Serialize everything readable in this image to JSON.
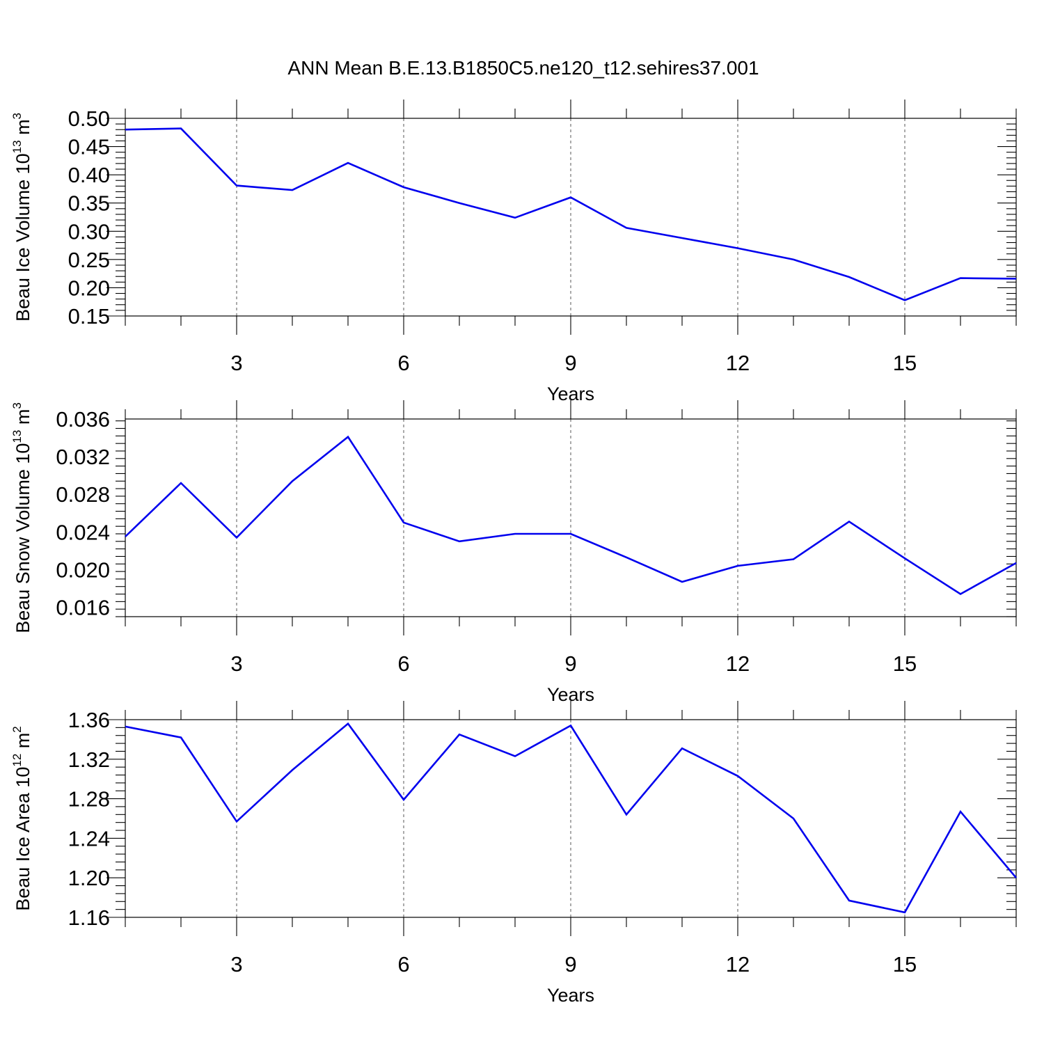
{
  "chart_data": [
    {
      "type": "line",
      "title": "ANN Mean B.E.13.B1850C5.ne120_t12.sehires37.001",
      "xlabel": "Years",
      "ylabel": {
        "base": "Beau Ice Volume 10",
        "exp1": "13",
        "unit": " m",
        "exp2": "3"
      },
      "xlim": [
        1,
        17
      ],
      "ylim": [
        0.15,
        0.5
      ],
      "xticks": [
        3,
        6,
        9,
        12,
        15
      ],
      "xtick_labels": [
        "3",
        "6",
        "9",
        "12",
        "15"
      ],
      "yticks": [
        0.15,
        0.2,
        0.25,
        0.3,
        0.35,
        0.4,
        0.45,
        0.5
      ],
      "ytick_labels": [
        "0.15",
        "0.20",
        "0.25",
        "0.30",
        "0.35",
        "0.40",
        "0.45",
        "0.50"
      ],
      "grid": "x-dashed",
      "color": "#0000ee",
      "x": [
        1,
        2,
        3,
        4,
        5,
        6,
        7,
        8,
        9,
        10,
        11,
        12,
        13,
        14,
        15,
        16,
        17
      ],
      "values": [
        0.48,
        0.482,
        0.381,
        0.373,
        0.421,
        0.378,
        0.35,
        0.324,
        0.36,
        0.306,
        0.288,
        0.27,
        0.25,
        0.219,
        0.178,
        0.217,
        0.216
      ]
    },
    {
      "type": "line",
      "xlabel": "Years",
      "ylabel": {
        "base": "Beau Snow Volume 10",
        "exp1": "13",
        "unit": " m",
        "exp2": "3"
      },
      "xlim": [
        1,
        17
      ],
      "ylim": [
        0.015,
        0.036
      ],
      "xticks": [
        3,
        6,
        9,
        12,
        15
      ],
      "xtick_labels": [
        "3",
        "6",
        "9",
        "12",
        "15"
      ],
      "yticks": [
        0.016,
        0.02,
        0.024,
        0.028,
        0.032,
        0.036
      ],
      "ytick_labels": [
        "0.016",
        "0.020",
        "0.024",
        "0.028",
        "0.032",
        "0.036"
      ],
      "grid": "x-dashed",
      "color": "#0000ee",
      "x": [
        1,
        2,
        3,
        4,
        5,
        6,
        7,
        8,
        9,
        10,
        11,
        12,
        13,
        14,
        15,
        16,
        17
      ],
      "values": [
        0.0235,
        0.0292,
        0.0234,
        0.0294,
        0.0341,
        0.025,
        0.023,
        0.0238,
        0.0238,
        0.0213,
        0.0187,
        0.0204,
        0.0211,
        0.0251,
        0.0212,
        0.0174,
        0.0207
      ]
    },
    {
      "type": "line",
      "xlabel": "Years",
      "ylabel": {
        "base": "Beau Ice Area 10",
        "exp1": "12",
        "unit": " m",
        "exp2": "2"
      },
      "xlim": [
        1,
        17
      ],
      "ylim": [
        1.16,
        1.36
      ],
      "xticks": [
        3,
        6,
        9,
        12,
        15
      ],
      "xtick_labels": [
        "3",
        "6",
        "9",
        "12",
        "15"
      ],
      "yticks": [
        1.16,
        1.2,
        1.24,
        1.28,
        1.32,
        1.36
      ],
      "ytick_labels": [
        "1.16",
        "1.20",
        "1.24",
        "1.28",
        "1.32",
        "1.36"
      ],
      "grid": "x-dashed",
      "color": "#0000ee",
      "x": [
        1,
        2,
        3,
        4,
        5,
        6,
        7,
        8,
        9,
        10,
        11,
        12,
        13,
        14,
        15,
        16,
        17
      ],
      "values": [
        1.353,
        1.342,
        1.257,
        1.309,
        1.356,
        1.279,
        1.345,
        1.323,
        1.354,
        1.264,
        1.331,
        1.303,
        1.26,
        1.177,
        1.165,
        1.267,
        1.2
      ]
    }
  ]
}
